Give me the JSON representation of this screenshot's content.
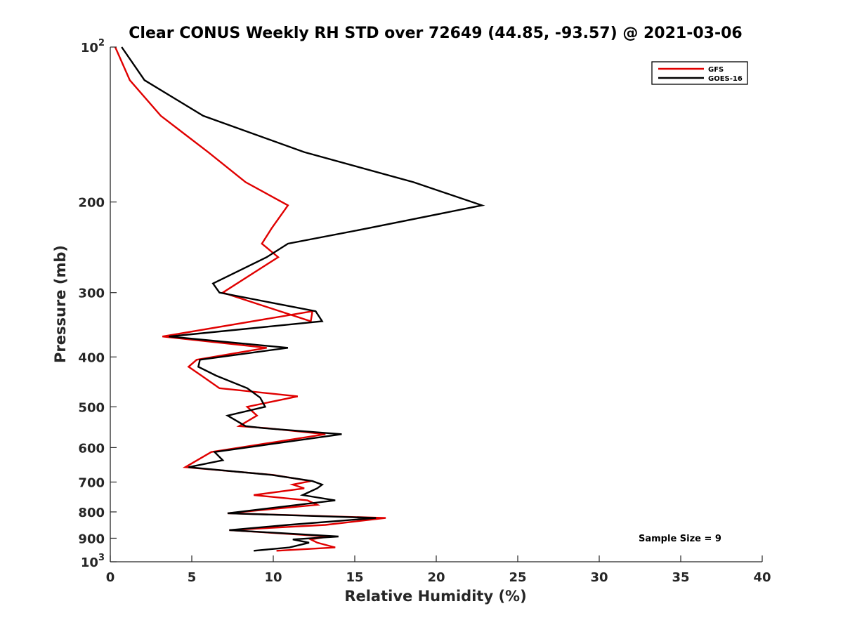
{
  "chart_data": {
    "type": "line",
    "title": "Clear CONUS Weekly RH STD over 72649 (44.85, -93.57) @ 2021-03-06",
    "xlabel": "Relative Humidity (%)",
    "ylabel": "Pressure (mb)",
    "xlim": [
      0,
      40
    ],
    "ylim": [
      100,
      1000
    ],
    "y_scale": "log",
    "y_reversed": true,
    "grid": false,
    "legend_position": "top-right",
    "x_ticks": [
      {
        "value": 0,
        "label": "0"
      },
      {
        "value": 5,
        "label": "5"
      },
      {
        "value": 10,
        "label": "10"
      },
      {
        "value": 15,
        "label": "15"
      },
      {
        "value": 20,
        "label": "20"
      },
      {
        "value": 25,
        "label": "25"
      },
      {
        "value": 30,
        "label": "30"
      },
      {
        "value": 35,
        "label": "35"
      },
      {
        "value": 40,
        "label": "40"
      }
    ],
    "y_ticks": [
      {
        "value": 100,
        "base": "10",
        "exp": "2"
      },
      {
        "value": 200,
        "label": "200"
      },
      {
        "value": 300,
        "label": "300"
      },
      {
        "value": 400,
        "label": "400"
      },
      {
        "value": 500,
        "label": "500"
      },
      {
        "value": 600,
        "label": "600"
      },
      {
        "value": 700,
        "label": "700"
      },
      {
        "value": 800,
        "label": "800"
      },
      {
        "value": 900,
        "label": "900"
      },
      {
        "value": 1000,
        "base": "10",
        "exp": "3"
      }
    ],
    "annotation": "Sample Size = 9",
    "series": [
      {
        "name": "GFS",
        "color": "#e00000",
        "points": [
          [
            0.3,
            100
          ],
          [
            1.2,
            116
          ],
          [
            3.1,
            136
          ],
          [
            6.0,
            160
          ],
          [
            8.3,
            183
          ],
          [
            10.9,
            203
          ],
          [
            9.9,
            225
          ],
          [
            9.3,
            241
          ],
          [
            10.3,
            256
          ],
          [
            6.9,
            300
          ],
          [
            12.3,
            341
          ],
          [
            12.4,
            326
          ],
          [
            3.2,
            365
          ],
          [
            9.6,
            384
          ],
          [
            5.3,
            405
          ],
          [
            4.8,
            418
          ],
          [
            5.6,
            435
          ],
          [
            6.7,
            460
          ],
          [
            11.5,
            477
          ],
          [
            8.4,
            500
          ],
          [
            9.0,
            520
          ],
          [
            7.9,
            545
          ],
          [
            9.6,
            550
          ],
          [
            13.2,
            565
          ],
          [
            6.2,
            612
          ],
          [
            4.6,
            655
          ],
          [
            10.0,
            678
          ],
          [
            12.3,
            697
          ],
          [
            11.2,
            708
          ],
          [
            11.9,
            720
          ],
          [
            8.8,
            742
          ],
          [
            12.1,
            760
          ],
          [
            12.7,
            775
          ],
          [
            7.2,
            805
          ],
          [
            16.9,
            822
          ],
          [
            13.2,
            848
          ],
          [
            7.3,
            868
          ],
          [
            13.4,
            893
          ],
          [
            12.3,
            905
          ],
          [
            12.7,
            918
          ],
          [
            13.8,
            938
          ],
          [
            10.2,
            952
          ]
        ]
      },
      {
        "name": "GOES-16",
        "color": "#000000",
        "points": [
          [
            0.7,
            100
          ],
          [
            2.1,
            116
          ],
          [
            5.7,
            136
          ],
          [
            11.9,
            160
          ],
          [
            18.6,
            183
          ],
          [
            22.8,
            203
          ],
          [
            15.8,
            225
          ],
          [
            10.9,
            241
          ],
          [
            9.6,
            256
          ],
          [
            6.3,
            288
          ],
          [
            6.7,
            300
          ],
          [
            12.6,
            326
          ],
          [
            13.0,
            341
          ],
          [
            3.6,
            365
          ],
          [
            10.9,
            384
          ],
          [
            5.5,
            405
          ],
          [
            5.4,
            418
          ],
          [
            6.5,
            435
          ],
          [
            8.4,
            460
          ],
          [
            9.2,
            480
          ],
          [
            9.5,
            500
          ],
          [
            7.2,
            520
          ],
          [
            8.3,
            545
          ],
          [
            9.4,
            550
          ],
          [
            14.2,
            565
          ],
          [
            6.4,
            612
          ],
          [
            6.9,
            635
          ],
          [
            4.8,
            655
          ],
          [
            9.9,
            678
          ],
          [
            12.4,
            697
          ],
          [
            13.0,
            708
          ],
          [
            12.7,
            720
          ],
          [
            11.8,
            742
          ],
          [
            13.8,
            760
          ],
          [
            7.2,
            805
          ],
          [
            16.3,
            822
          ],
          [
            10.9,
            848
          ],
          [
            7.3,
            868
          ],
          [
            14.0,
            893
          ],
          [
            11.2,
            905
          ],
          [
            12.2,
            918
          ],
          [
            11.0,
            938
          ],
          [
            8.8,
            952
          ]
        ]
      }
    ]
  }
}
